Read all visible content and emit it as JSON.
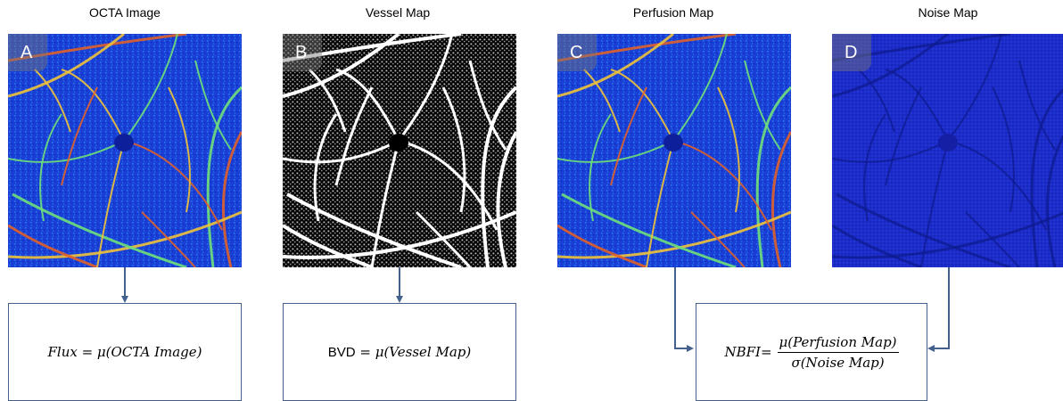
{
  "panels": [
    {
      "title": "OCTA Image",
      "letter": "A",
      "style": "flow"
    },
    {
      "title": "Vessel Map",
      "letter": "B",
      "style": "binary"
    },
    {
      "title": "Perfusion Map",
      "letter": "C",
      "style": "flow"
    },
    {
      "title": "Noise Map",
      "letter": "D",
      "style": "noise"
    }
  ],
  "formulas": {
    "flux": {
      "lhs": "Flux",
      "eq": " = ",
      "mu": "μ",
      "arg": "(OCTA Image)"
    },
    "bvd": {
      "lhs": "BVD",
      "eq": " = ",
      "mu": "μ",
      "arg": "(Vessel Map)"
    },
    "nbfi": {
      "lhs": "NBFI",
      "eq": " = ",
      "num": "μ(Perfusion Map)",
      "den": "σ(Noise Map)"
    }
  },
  "colors": {
    "connector": "#44618e",
    "flow_background": "#1a3fd6",
    "noise_background": "#1c2cc8",
    "vessel_hot": "#e0602a"
  }
}
